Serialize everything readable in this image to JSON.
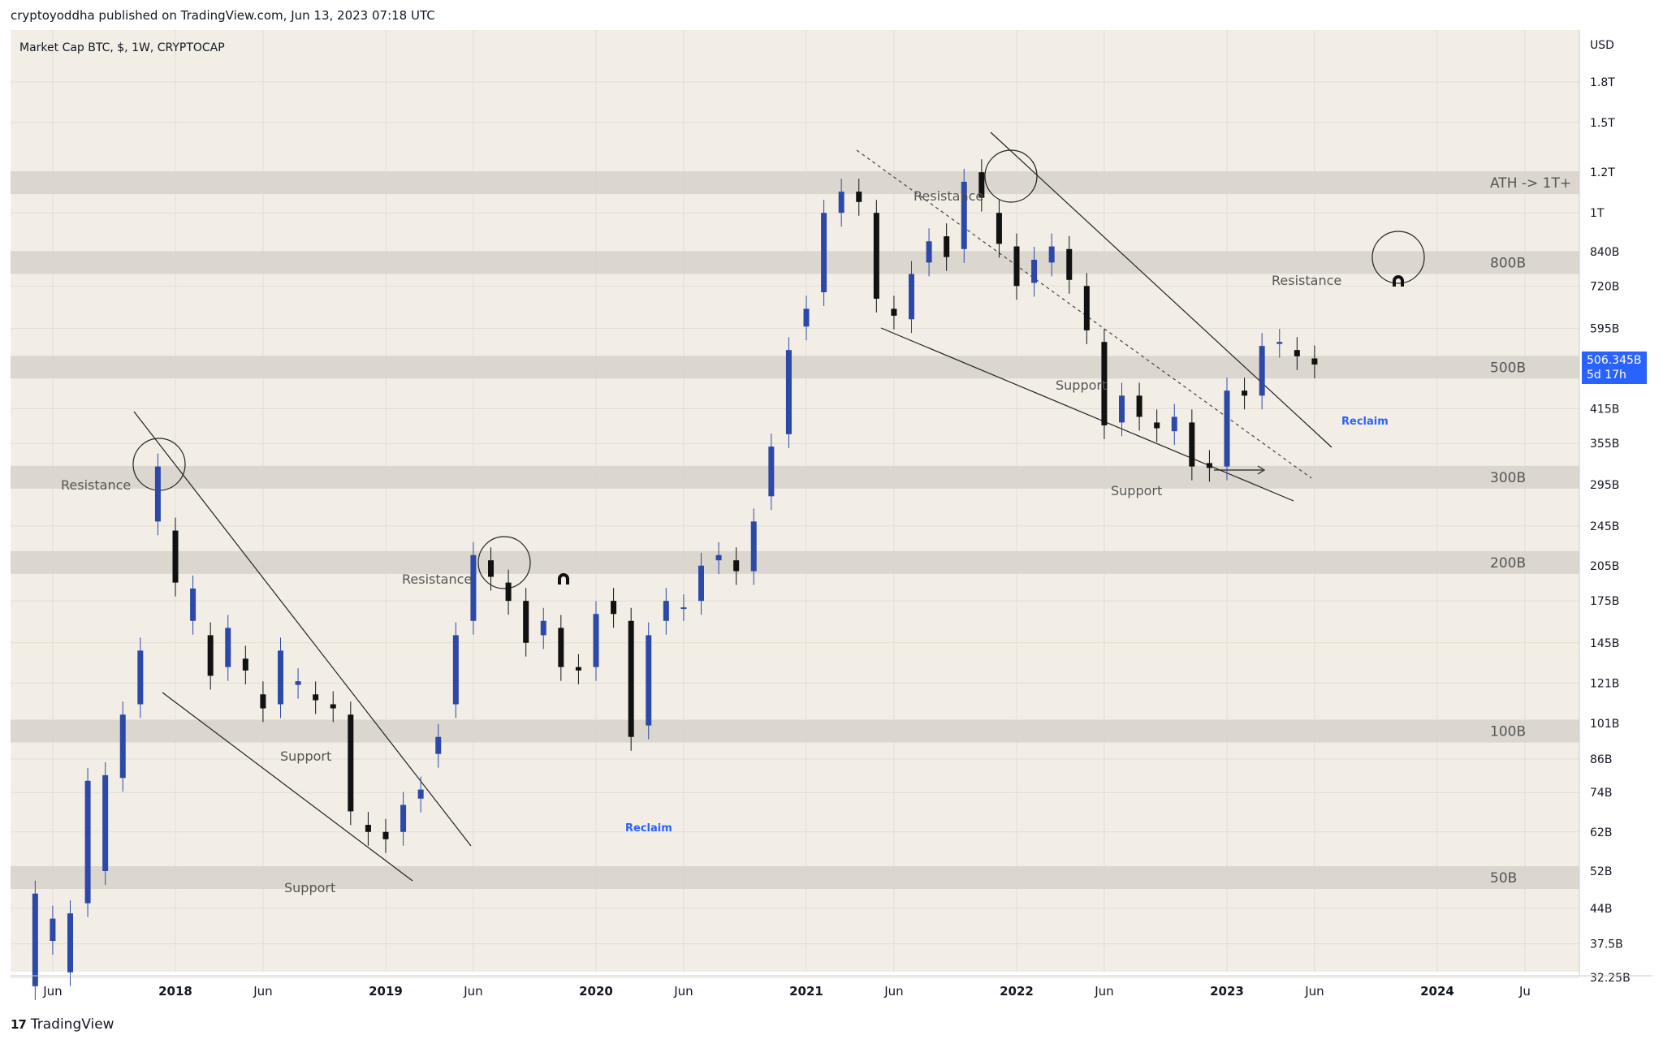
{
  "header": {
    "caption": "cryptoyoddha published on TradingView.com, Jun 13, 2023 07:18 UTC"
  },
  "legend": {
    "symbol": "Market Cap BTC, $, 1W, CRYPTOCAP"
  },
  "footer": {
    "brand": "TradingView",
    "brand_mark": "17"
  },
  "price_tag": {
    "value": "506.345B",
    "countdown": "5d 17h",
    "color": "#2962ff"
  },
  "colors": {
    "chart_bg": "#f2eee6",
    "zone_fill": "#d9d5ce",
    "bull_candle": "#2c49a8",
    "bear_candle": "#111111",
    "annotation_blue": "#2962ff",
    "grid": "#e2ddd4"
  },
  "chart_data": {
    "type": "candlestick",
    "title": "Market Cap BTC, $, 1W, CRYPTOCAP",
    "y_scale": "log",
    "y_unit": "USD",
    "y_tick_labels": [
      "1.8T",
      "1.5T",
      "1.2T",
      "1T",
      "840B",
      "720B",
      "595B",
      "500B",
      "415B",
      "355B",
      "295B",
      "245B",
      "205B",
      "175B",
      "145B",
      "121B",
      "101B",
      "86B",
      "74B",
      "62B",
      "52B",
      "44B",
      "37.5B",
      "32.25B"
    ],
    "x_tick_labels": [
      "Jun",
      "2018",
      "Jun",
      "2019",
      "Jun",
      "2020",
      "Jun",
      "2021",
      "Jun",
      "2022",
      "Jun",
      "2023",
      "Jun",
      "2024",
      "Ju"
    ],
    "zones": [
      {
        "name": "ATH -> 1T+",
        "value_label": "ATH -> 1T+"
      },
      {
        "name": "800B",
        "value_label": "800B"
      },
      {
        "name": "500B",
        "value_label": "500B"
      },
      {
        "name": "300B",
        "value_label": "300B"
      },
      {
        "name": "200B",
        "value_label": "200B"
      },
      {
        "name": "100B",
        "value_label": "100B"
      },
      {
        "name": "50B",
        "value_label": "50B"
      }
    ],
    "annotations": [
      {
        "text": "Resistance",
        "near": "2017-12 top"
      },
      {
        "text": "Support",
        "near": "2018-2019 wedge"
      },
      {
        "text": "Support",
        "near": "2019 bottom"
      },
      {
        "text": "Resistance",
        "near": "2019-07 top"
      },
      {
        "text": "Reclaim",
        "near": "2020-03 low",
        "color": "blue"
      },
      {
        "text": "Resistance",
        "near": "2021-11 top"
      },
      {
        "text": "Support",
        "near": "2022-06 500B"
      },
      {
        "text": "Support",
        "near": "2022-11 300B"
      },
      {
        "text": "Resistance",
        "near": "800B zone 2023"
      },
      {
        "text": "Reclaim",
        "near": "2023-06 500B",
        "color": "blue"
      }
    ],
    "series": [
      {
        "name": "Market Cap BTC",
        "points": [
          [
            "2017-05",
            31,
            47
          ],
          [
            "2017-06",
            38,
            42
          ],
          [
            "2017-07",
            33,
            43
          ],
          [
            "2017-08",
            45,
            78
          ],
          [
            "2017-09",
            52,
            80
          ],
          [
            "2017-10",
            79,
            105
          ],
          [
            "2017-11",
            110,
            140
          ],
          [
            "2017-12",
            250,
            320
          ],
          [
            "2018-01",
            240,
            190
          ],
          [
            "2018-02",
            160,
            185
          ],
          [
            "2018-03",
            150,
            125
          ],
          [
            "2018-04",
            130,
            155
          ],
          [
            "2018-05",
            135,
            128
          ],
          [
            "2018-06",
            115,
            108
          ],
          [
            "2018-07",
            110,
            140
          ],
          [
            "2018-08",
            120,
            122
          ],
          [
            "2018-09",
            115,
            112
          ],
          [
            "2018-10",
            110,
            108
          ],
          [
            "2018-11",
            105,
            68
          ],
          [
            "2018-12",
            64,
            62
          ],
          [
            "2019-01",
            62,
            60
          ],
          [
            "2019-02",
            62,
            70
          ],
          [
            "2019-03",
            72,
            75
          ],
          [
            "2019-04",
            88,
            95
          ],
          [
            "2019-05",
            110,
            150
          ],
          [
            "2019-06",
            160,
            215
          ],
          [
            "2019-07",
            210,
            195
          ],
          [
            "2019-08",
            190,
            175
          ],
          [
            "2019-09",
            175,
            145
          ],
          [
            "2019-10",
            150,
            160
          ],
          [
            "2019-11",
            155,
            130
          ],
          [
            "2019-12",
            130,
            128
          ],
          [
            "2020-01",
            130,
            165
          ],
          [
            "2020-02",
            175,
            165
          ],
          [
            "2020-03",
            160,
            95
          ],
          [
            "2020-04",
            100,
            150
          ],
          [
            "2020-05",
            160,
            175
          ],
          [
            "2020-06",
            170,
            170
          ],
          [
            "2020-07",
            175,
            205
          ],
          [
            "2020-08",
            210,
            215
          ],
          [
            "2020-09",
            210,
            200
          ],
          [
            "2020-10",
            200,
            250
          ],
          [
            "2020-11",
            280,
            350
          ],
          [
            "2020-12",
            370,
            540
          ],
          [
            "2021-01",
            600,
            650
          ],
          [
            "2021-02",
            700,
            1000
          ],
          [
            "2021-03",
            1000,
            1100
          ],
          [
            "2021-04",
            1100,
            1050
          ],
          [
            "2021-05",
            1000,
            680
          ],
          [
            "2021-06",
            650,
            630
          ],
          [
            "2021-07",
            620,
            760
          ],
          [
            "2021-08",
            800,
            880
          ],
          [
            "2021-09",
            900,
            820
          ],
          [
            "2021-10",
            850,
            1150
          ],
          [
            "2021-11",
            1200,
            1070
          ],
          [
            "2021-12",
            1000,
            870
          ],
          [
            "2022-01",
            860,
            720
          ],
          [
            "2022-02",
            730,
            810
          ],
          [
            "2022-03",
            800,
            860
          ],
          [
            "2022-04",
            850,
            740
          ],
          [
            "2022-05",
            720,
            590
          ],
          [
            "2022-06",
            560,
            385
          ],
          [
            "2022-07",
            390,
            440
          ],
          [
            "2022-08",
            440,
            400
          ],
          [
            "2022-09",
            390,
            380
          ],
          [
            "2022-10",
            375,
            400
          ],
          [
            "2022-11",
            390,
            320
          ],
          [
            "2022-12",
            325,
            318
          ],
          [
            "2023-01",
            320,
            450
          ],
          [
            "2023-02",
            450,
            440
          ],
          [
            "2023-03",
            440,
            550
          ],
          [
            "2023-04",
            555,
            560
          ],
          [
            "2023-05",
            540,
            525
          ],
          [
            "2023-06",
            520,
            506
          ]
        ]
      }
    ]
  }
}
